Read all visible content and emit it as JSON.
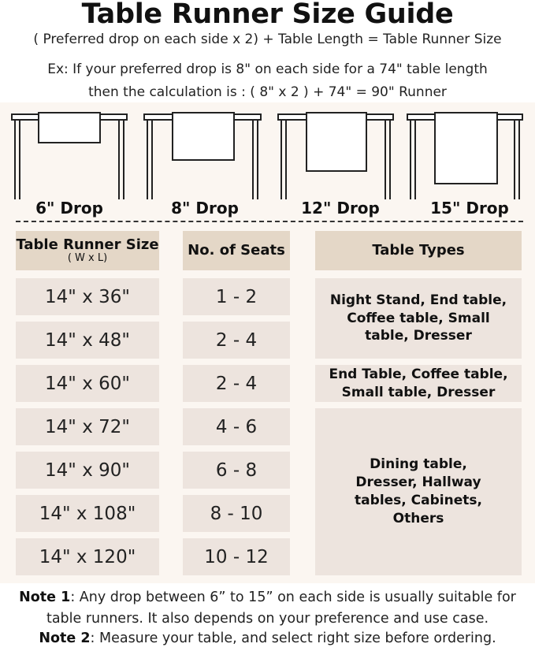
{
  "title": "Table Runner Size Guide",
  "formula": "( Preferred drop on each side x 2) + Table Length = Table Runner Size",
  "example_line1": "Ex: If your preferred drop is 8\" on each side for a 74\" table length",
  "example_line2": "then the calculation is : ( 8\" x 2 ) + 74\" = 90\" Runner",
  "drops": [
    "6\" Drop",
    "8\" Drop",
    "12\" Drop",
    "15\" Drop"
  ],
  "headers": {
    "size": "Table Runner Size",
    "size_sub": "( W x L)",
    "seats": "No. of Seats",
    "types": "Table Types"
  },
  "rows": [
    {
      "size": "14\" x 36\"",
      "seats": "1 - 2"
    },
    {
      "size": "14\" x 48\"",
      "seats": "2 - 4"
    },
    {
      "size": "14\" x 60\"",
      "seats": "2 - 4"
    },
    {
      "size": "14\" x 72\"",
      "seats": "4 - 6"
    },
    {
      "size": "14\" x 90\"",
      "seats": "6 - 8"
    },
    {
      "size": "14\" x 108\"",
      "seats": "8 - 10"
    },
    {
      "size": "14\" x 120\"",
      "seats": "10 - 12"
    }
  ],
  "types": [
    "Night Stand, End table, Coffee table, Small table, Dresser",
    "End Table, Coffee table, Small table, Dresser",
    "Dining table, Dresser, Hallway tables, Cabinets, Others"
  ],
  "notes": [
    {
      "label": "Note 1",
      "text": ": Any drop between 6” to 15” on each side is usually suitable for table runners. It also depends on your preference and use case."
    },
    {
      "label": "Note 2",
      "text": ": Measure your table, and select right size before ordering."
    }
  ],
  "colors": {
    "header_cell": "#e4d7c7",
    "body_cell": "#ede4de",
    "panel": "#fbf6f1"
  }
}
